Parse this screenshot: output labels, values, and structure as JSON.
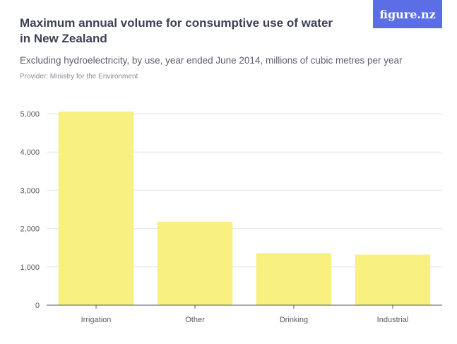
{
  "header": {
    "title": "Maximum annual volume for consumptive use of water in New Zealand",
    "subtitle": "Excluding hydroelectricity, by use, year ended June 2014, millions of cubic metres per year",
    "provider": "Provider: Ministry for the Environment",
    "logo_text": "figure.nz"
  },
  "colors": {
    "bar": "#f8f07f",
    "grid": "#e3e3e8",
    "axis": "#555a66",
    "logo_bg": "#5c6ee6"
  },
  "chart_data": {
    "type": "bar",
    "title": "Maximum annual volume for consumptive use of water in New Zealand",
    "subtitle": "Excluding hydroelectricity, by use, year ended June 2014, millions of cubic metres per year",
    "categories": [
      "Irrigation",
      "Other",
      "Drinking",
      "Industrial"
    ],
    "values": [
      5060,
      2180,
      1360,
      1320
    ],
    "ylim": [
      0,
      5000
    ],
    "yticks": [
      0,
      1000,
      2000,
      3000,
      4000,
      5000
    ],
    "ytick_labels": [
      "0",
      "1,000",
      "2,000",
      "3,000",
      "4,000",
      "5,000"
    ],
    "xlabel": "",
    "ylabel": "",
    "grid": true
  }
}
